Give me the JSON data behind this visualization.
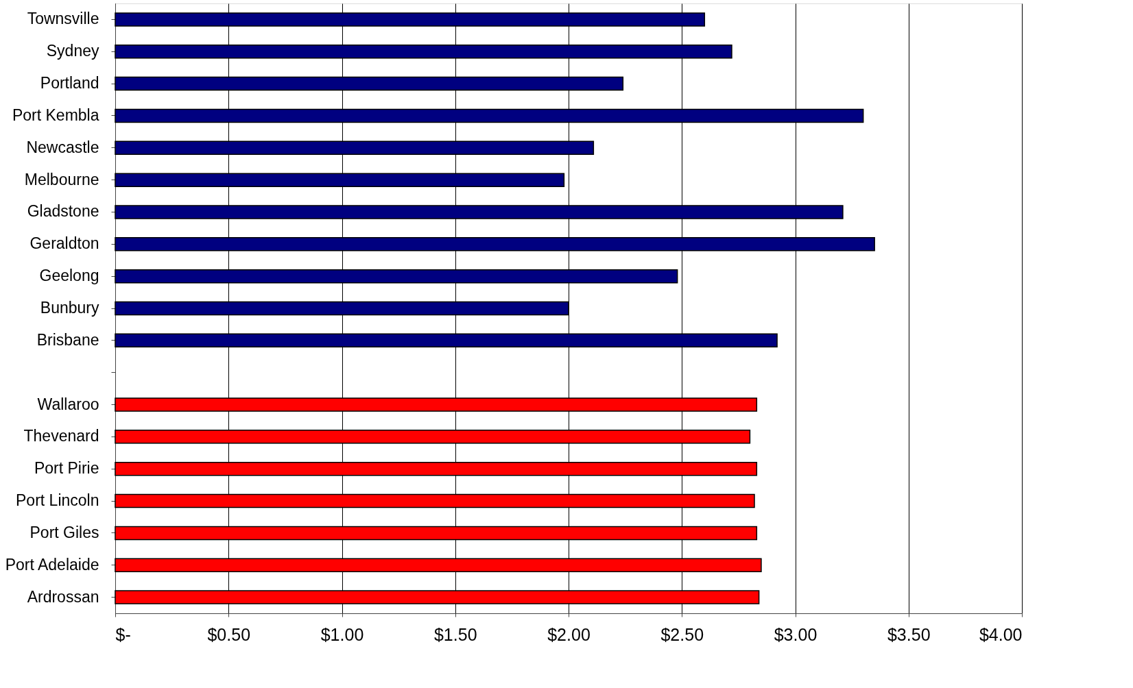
{
  "chart_data": {
    "type": "bar",
    "orientation": "horizontal",
    "categories": [
      "Townsville",
      "Sydney",
      "Portland",
      "Port Kembla",
      "Newcastle",
      "Melbourne",
      "Gladstone",
      "Geraldton",
      "Geelong",
      "Bunbury",
      "Brisbane",
      null,
      "Wallaroo",
      "Thevenard",
      "Port Pirie",
      "Port Lincoln",
      "Port Giles",
      "Port Adelaide",
      "Ardrossan"
    ],
    "series": [
      {
        "color": "#000080",
        "values": [
          2.6,
          2.72,
          2.24,
          3.3,
          2.11,
          1.98,
          3.21,
          3.35,
          2.48,
          2.0,
          2.92,
          null,
          null,
          null,
          null,
          null,
          null,
          null,
          null
        ]
      },
      {
        "color": "#ff0000",
        "values": [
          null,
          null,
          null,
          null,
          null,
          null,
          null,
          null,
          null,
          null,
          null,
          null,
          2.83,
          2.8,
          2.83,
          2.82,
          2.83,
          2.85,
          2.84
        ]
      }
    ],
    "xlim": [
      0,
      4
    ],
    "xticks": [
      {
        "value": 0,
        "label": "$-"
      },
      {
        "value": 0.5,
        "label": "$0.50"
      },
      {
        "value": 1,
        "label": "$1.00"
      },
      {
        "value": 1.5,
        "label": "$1.50"
      },
      {
        "value": 2,
        "label": "$2.00"
      },
      {
        "value": 2.5,
        "label": "$2.50"
      },
      {
        "value": 3,
        "label": "$3.00"
      },
      {
        "value": 3.5,
        "label": "$3.50"
      },
      {
        "value": 4,
        "label": "$4.00"
      }
    ],
    "grid": "x",
    "legend": false
  }
}
